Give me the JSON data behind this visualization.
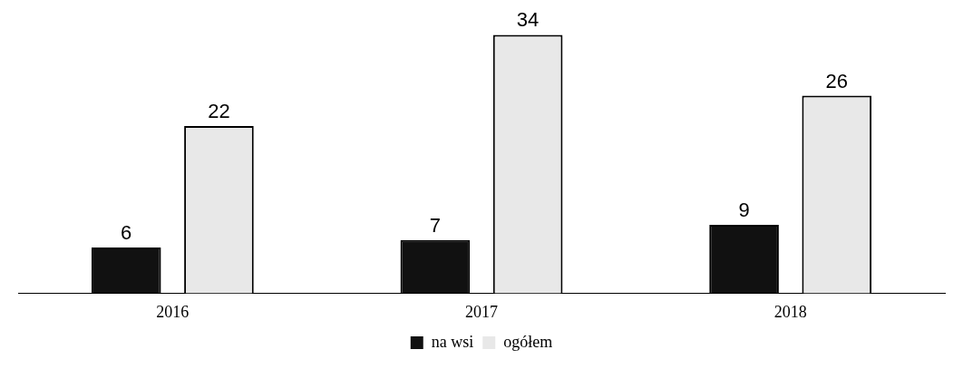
{
  "chart_data": {
    "type": "bar",
    "categories": [
      "2016",
      "2017",
      "2018"
    ],
    "series": [
      {
        "name": "na wsi",
        "color": "#111111",
        "values": [
          6,
          7,
          9
        ]
      },
      {
        "name": "ogółem",
        "color": "#e8e8e8",
        "values": [
          22,
          34,
          26
        ]
      }
    ],
    "data_labels": true,
    "legend": "bottom",
    "grid": false
  }
}
